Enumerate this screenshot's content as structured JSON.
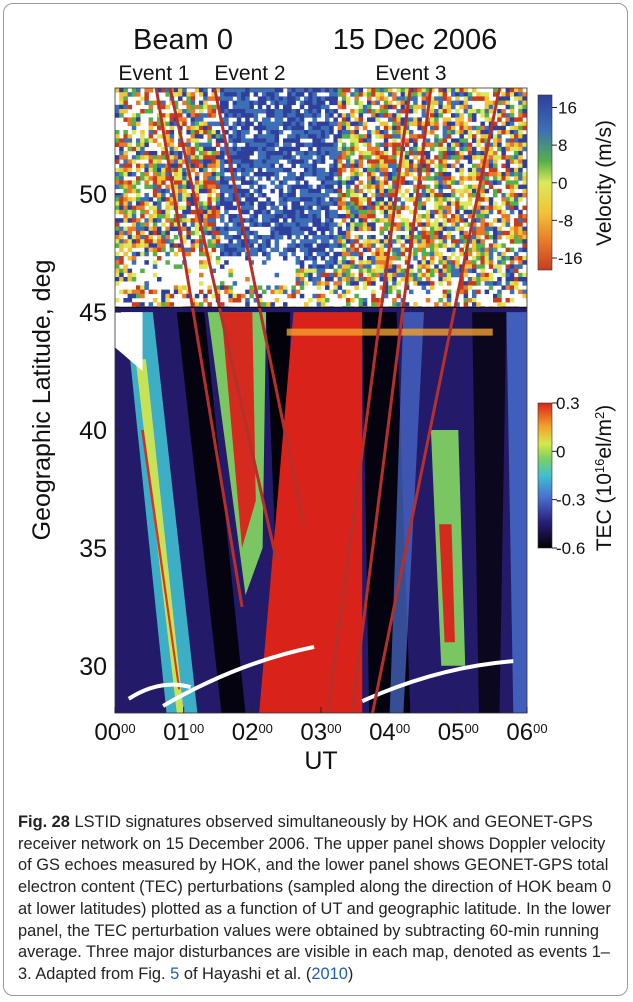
{
  "chart_data": {
    "type": "heatmap",
    "title": "Beam 0",
    "date": "15 Dec 2006",
    "event_labels": [
      "Event 1",
      "Event 2",
      "Event 3"
    ],
    "xlabel": "UT",
    "ylabel": "Geographic Latitude, deg",
    "x_ticks": [
      {
        "base": "00",
        "sup": "00",
        "hour": 0
      },
      {
        "base": "01",
        "sup": "00",
        "hour": 1
      },
      {
        "base": "02",
        "sup": "00",
        "hour": 2
      },
      {
        "base": "03",
        "sup": "00",
        "hour": 3
      },
      {
        "base": "04",
        "sup": "00",
        "hour": 4
      },
      {
        "base": "05",
        "sup": "00",
        "hour": 5
      },
      {
        "base": "06",
        "sup": "00",
        "hour": 6
      }
    ],
    "y_ticks": [
      30,
      35,
      40,
      45,
      50
    ],
    "xlim": [
      0,
      6
    ],
    "ylim": [
      28,
      54.5
    ],
    "panel_boundary_lat": 45.2,
    "upper_panel": {
      "quantity": "Doppler velocity",
      "colorbar_label": "Velocity (m/s)",
      "colorbar_ticks": [
        16,
        8,
        0,
        -8,
        -16
      ],
      "range": [
        -16,
        16
      ]
    },
    "lower_panel": {
      "quantity": "TEC perturbation",
      "colorbar_label_parts": [
        "TEC (10",
        "16",
        "el/m",
        "2",
        ")"
      ],
      "colorbar_ticks": [
        0.3,
        0,
        -0.3,
        -0.6
      ],
      "range": [
        -0.6,
        0.3
      ]
    },
    "event_lines": [
      {
        "name": "Event 1",
        "segments": [
          [
            [
              0.6,
              54.5
            ],
            [
              1.85,
              32.5
            ]
          ],
          [
            [
              0.8,
              54.5
            ],
            [
              2.35,
              34.5
            ]
          ]
        ]
      },
      {
        "name": "Event 2",
        "segments": [
          [
            [
              1.45,
              54.5
            ],
            [
              2.75,
              36
            ]
          ]
        ]
      },
      {
        "name": "Event 3",
        "segments": [
          [
            [
              3.1,
              28
            ],
            [
              4.3,
              54.5
            ]
          ],
          [
            [
              3.45,
              28
            ],
            [
              4.6,
              54.5
            ]
          ],
          [
            [
              3.75,
              28
            ],
            [
              5.6,
              54.5
            ]
          ]
        ]
      }
    ]
  },
  "colors": {
    "velocity_scale": [
      "#c83c1e",
      "#e8782a",
      "#f2c434",
      "#dce85a",
      "#56b04a",
      "#3c6fb6",
      "#2f3f9c"
    ],
    "tec_scale": [
      "#000000",
      "#2a1f7a",
      "#4a6fd0",
      "#3fbfcf",
      "#7fd062",
      "#d6e84a",
      "#f2a02a",
      "#d9231a"
    ],
    "event_line": "#b5302a"
  },
  "caption": {
    "label": "Fig. 28",
    "text_1": " LSTID signatures observed simultaneously by HOK and GEONET-GPS receiver network on 15 December 2006. The upper panel shows Doppler velocity of GS echoes measured by HOK, and the lower panel shows GEONET-GPS total electron content (TEC) perturbations (sampled along the direction of HOK beam 0 at lower latitudes) plotted as a function of UT and geographic latitude. In the lower panel, the TEC perturbation values were obtained by subtracting 60-min running average. Three major disturbances are visible in each map, denoted as events 1–3. Adapted from Fig. ",
    "fig_ref": "5",
    "text_2": " of Hayashi et al. (",
    "year_ref": "2010",
    "text_3": ")"
  }
}
